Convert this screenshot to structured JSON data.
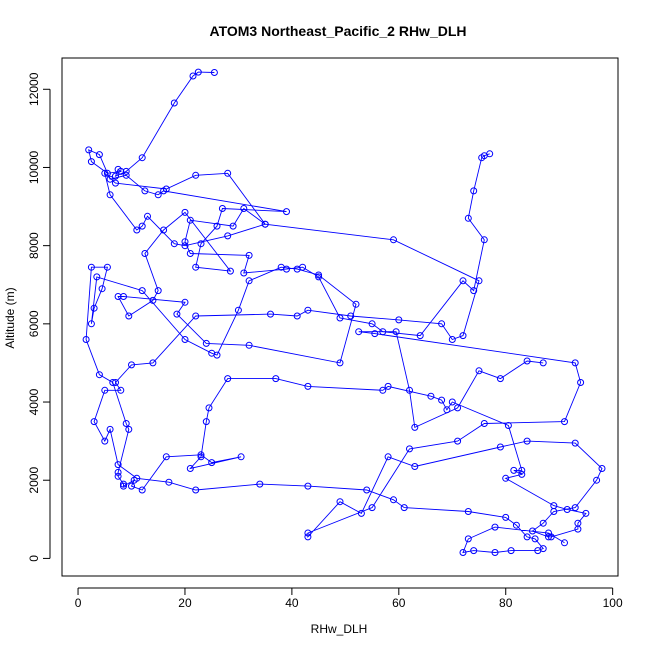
{
  "chart_data": {
    "type": "line",
    "title": "ATOM3 Northeast_Pacific_2 RHw_DLH",
    "xlabel": "RHw_DLH",
    "ylabel": "Altitude (m)",
    "xlim": [
      -3,
      101
    ],
    "ylim": [
      -450,
      12800
    ],
    "xticks": [
      0,
      20,
      40,
      60,
      80,
      100
    ],
    "yticks": [
      0,
      2000,
      4000,
      6000,
      8000,
      10000,
      12000
    ],
    "grid": false,
    "color": "#0000ff",
    "marker": "open-circle",
    "series": [
      {
        "points": [
          [
            25.5,
            12430
          ],
          [
            22.5,
            12440
          ],
          [
            21.5,
            12340
          ],
          [
            18,
            11650
          ],
          [
            12,
            10250
          ],
          [
            9,
            9900
          ],
          [
            7,
            9780
          ],
          [
            7.5,
            9950
          ],
          [
            8,
            9900
          ],
          [
            5.5,
            9850
          ],
          [
            2.5,
            10150
          ],
          [
            2,
            10450
          ],
          [
            4,
            10330
          ],
          [
            6,
            9700
          ],
          [
            9,
            9800
          ],
          [
            12.5,
            9400
          ],
          [
            15,
            9300
          ],
          [
            16,
            9400
          ],
          [
            39,
            8870
          ],
          [
            27,
            8950
          ],
          [
            26,
            8500
          ],
          [
            23,
            8050
          ],
          [
            22,
            7450
          ],
          [
            28.5,
            7350
          ],
          [
            20,
            8850
          ],
          [
            16,
            8400
          ],
          [
            12.5,
            7800
          ],
          [
            15,
            6850
          ],
          [
            14,
            6600
          ],
          [
            9.5,
            6200
          ],
          [
            7.5,
            6700
          ],
          [
            8.5,
            6700
          ],
          [
            20,
            6550
          ],
          [
            18.5,
            6250
          ],
          [
            24,
            5500
          ],
          [
            32,
            5450
          ],
          [
            49,
            5000
          ],
          [
            52,
            6500
          ],
          [
            45,
            7250
          ],
          [
            41,
            7400
          ],
          [
            38,
            7450
          ],
          [
            32,
            7100
          ],
          [
            30,
            6350
          ],
          [
            26,
            5200
          ],
          [
            25,
            5250
          ],
          [
            20,
            5600
          ],
          [
            12,
            6850
          ],
          [
            3.5,
            7200
          ],
          [
            2.5,
            6000
          ],
          [
            3,
            6400
          ],
          [
            4.5,
            6900
          ],
          [
            5.5,
            7450
          ],
          [
            2.5,
            7450
          ],
          [
            1.5,
            5600
          ],
          [
            4,
            4700
          ],
          [
            6.5,
            4500
          ],
          [
            9,
            3450
          ],
          [
            9.5,
            3300
          ],
          [
            7.5,
            2200
          ],
          [
            7.5,
            2100
          ],
          [
            8.5,
            1900
          ],
          [
            8.5,
            1850
          ],
          [
            10.5,
            2000
          ],
          [
            10,
            1850
          ],
          [
            12,
            1750
          ],
          [
            16.5,
            2600
          ],
          [
            23,
            2650
          ],
          [
            25,
            2450
          ],
          [
            30.5,
            2600
          ],
          [
            21,
            2300
          ],
          [
            23,
            2600
          ],
          [
            24,
            3500
          ],
          [
            24.5,
            3850
          ],
          [
            28,
            4600
          ],
          [
            37,
            4600
          ],
          [
            43,
            4400
          ],
          [
            57,
            4300
          ],
          [
            58,
            4400
          ],
          [
            66,
            4150
          ],
          [
            68,
            4050
          ],
          [
            69,
            3800
          ],
          [
            70,
            4000
          ],
          [
            80.5,
            3400
          ],
          [
            83,
            2250
          ],
          [
            81.5,
            2250
          ],
          [
            83,
            2150
          ],
          [
            80,
            2050
          ],
          [
            89,
            1350
          ],
          [
            91.5,
            1250
          ],
          [
            95,
            1150
          ],
          [
            93.5,
            900
          ],
          [
            93.5,
            750
          ],
          [
            88.5,
            550
          ],
          [
            88,
            550
          ],
          [
            85,
            700
          ],
          [
            87,
            900
          ],
          [
            89,
            1200
          ],
          [
            93,
            1300
          ],
          [
            97,
            2000
          ],
          [
            98,
            2300
          ],
          [
            93,
            2950
          ],
          [
            84,
            3000
          ],
          [
            79,
            2850
          ],
          [
            63,
            2350
          ],
          [
            58,
            2600
          ],
          [
            53,
            1150
          ],
          [
            49,
            1450
          ],
          [
            43,
            550
          ],
          [
            43,
            650
          ],
          [
            55,
            1300
          ],
          [
            62,
            2800
          ],
          [
            71,
            3000
          ],
          [
            76,
            3450
          ],
          [
            91,
            3500
          ],
          [
            94,
            4500
          ],
          [
            93,
            5000
          ],
          [
            55.5,
            5750
          ],
          [
            52.5,
            5800
          ],
          [
            59.5,
            5800
          ],
          [
            62,
            4300
          ],
          [
            63,
            3350
          ],
          [
            71,
            3850
          ],
          [
            75,
            4800
          ],
          [
            79,
            4600
          ],
          [
            84,
            5050
          ],
          [
            87,
            5000
          ]
        ]
      },
      {
        "points": [
          [
            77,
            10350
          ],
          [
            76,
            10300
          ],
          [
            75.5,
            10250
          ],
          [
            74,
            9400
          ],
          [
            73,
            8700
          ],
          [
            76,
            8150
          ],
          [
            74,
            6850
          ],
          [
            72,
            7100
          ],
          [
            64,
            5700
          ],
          [
            57,
            5800
          ],
          [
            55,
            6000
          ],
          [
            49,
            6150
          ],
          [
            45,
            7200
          ],
          [
            42,
            7450
          ],
          [
            39,
            7400
          ],
          [
            31,
            7300
          ],
          [
            32,
            7750
          ],
          [
            21,
            7800
          ],
          [
            20,
            8100
          ],
          [
            21,
            8650
          ],
          [
            29,
            8500
          ],
          [
            31,
            8950
          ],
          [
            35,
            8550
          ],
          [
            28,
            8250
          ],
          [
            20,
            8000
          ],
          [
            18,
            8050
          ],
          [
            13,
            8750
          ],
          [
            12,
            8500
          ],
          [
            11,
            8400
          ],
          [
            6,
            9300
          ],
          [
            5,
            9850
          ],
          [
            7,
            9600
          ],
          [
            16.5,
            9450
          ],
          [
            22,
            9800
          ],
          [
            28,
            9850
          ],
          [
            35,
            8550
          ],
          [
            59,
            8150
          ],
          [
            75,
            7100
          ],
          [
            72,
            5700
          ],
          [
            70,
            5600
          ],
          [
            68,
            6000
          ],
          [
            60,
            6100
          ],
          [
            51,
            6200
          ],
          [
            43,
            6350
          ],
          [
            41,
            6200
          ],
          [
            36,
            6250
          ],
          [
            22,
            6200
          ],
          [
            14,
            5000
          ],
          [
            10,
            4950
          ],
          [
            7,
            4500
          ],
          [
            8,
            4300
          ],
          [
            5,
            4300
          ],
          [
            3,
            3500
          ],
          [
            5,
            3000
          ],
          [
            6,
            3300
          ],
          [
            7.5,
            2400
          ],
          [
            11,
            2050
          ],
          [
            17,
            1950
          ],
          [
            22,
            1750
          ],
          [
            34,
            1900
          ],
          [
            43,
            1850
          ],
          [
            54,
            1750
          ],
          [
            59,
            1500
          ],
          [
            61,
            1300
          ],
          [
            73,
            1200
          ],
          [
            80,
            1050
          ],
          [
            82,
            850
          ],
          [
            84,
            550
          ],
          [
            85.5,
            500
          ],
          [
            87,
            250
          ],
          [
            86,
            200
          ],
          [
            81,
            200
          ],
          [
            78,
            150
          ],
          [
            74,
            200
          ],
          [
            72,
            150
          ],
          [
            73,
            500
          ],
          [
            78,
            800
          ],
          [
            88,
            650
          ],
          [
            91,
            400
          ]
        ]
      }
    ]
  }
}
